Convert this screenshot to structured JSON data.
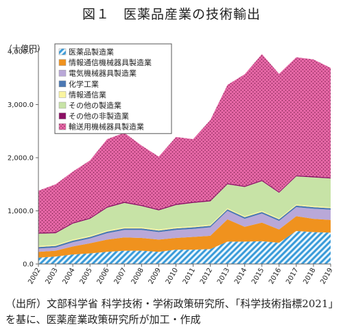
{
  "title": "図１　医薬品産業の技術輸出",
  "source_note": "（出所）文部科学省 科学技術・学術政策研究所、「科学技術指標2021」を基に、医薬産業政策研究所が加工・作成",
  "chart_data": {
    "type": "area",
    "stacked": true,
    "title": "図１　医薬品産業の技術輸出",
    "ylabel": "（十億円）",
    "xlabel": "",
    "ylim": [
      0,
      4000
    ],
    "yticks": [
      "0.0",
      "1,000.0",
      "2,000.0",
      "3,000.0",
      "4,000.0"
    ],
    "yticks_values": [
      0,
      1000,
      2000,
      3000,
      4000
    ],
    "grid": false,
    "legend_position": "top-left",
    "x": [
      "2002",
      "2003",
      "2004",
      "2005",
      "2006",
      "2007",
      "2008",
      "2009",
      "2010",
      "2011",
      "2012",
      "2013",
      "2014",
      "2015",
      "2016",
      "2017",
      "2018",
      "2019"
    ],
    "series": [
      {
        "name": "医薬品製造業",
        "color": "#3a9bd9",
        "pattern": "diagonal",
        "values": [
          120,
          140,
          180,
          200,
          230,
          250,
          250,
          230,
          270,
          270,
          280,
          420,
          420,
          430,
          400,
          620,
          600,
          590
        ]
      },
      {
        "name": "情報通信機械器具製造業",
        "color": "#f0921e",
        "pattern": "solid",
        "values": [
          110,
          110,
          150,
          190,
          230,
          250,
          240,
          230,
          220,
          240,
          250,
          420,
          280,
          350,
          250,
          280,
          250,
          240
        ]
      },
      {
        "name": "電気機械器具製造業",
        "color": "#b9a8d8",
        "pattern": "solid",
        "values": [
          60,
          60,
          80,
          90,
          120,
          140,
          150,
          140,
          150,
          150,
          160,
          160,
          150,
          170,
          160,
          170,
          190,
          190
        ]
      },
      {
        "name": "化学工業",
        "color": "#4b78b3",
        "pattern": "solid",
        "values": [
          30,
          30,
          30,
          30,
          30,
          30,
          30,
          30,
          30,
          30,
          30,
          30,
          30,
          30,
          30,
          30,
          30,
          30
        ]
      },
      {
        "name": "情報通信業",
        "color": "#faf5a0",
        "pattern": "solid",
        "values": [
          20,
          20,
          20,
          20,
          20,
          20,
          20,
          20,
          20,
          20,
          20,
          20,
          20,
          20,
          20,
          20,
          20,
          20
        ]
      },
      {
        "name": "その他の製造業",
        "color": "#c7e3a6",
        "pattern": "solid",
        "values": [
          230,
          220,
          300,
          320,
          430,
          460,
          400,
          360,
          420,
          440,
          440,
          450,
          550,
          560,
          480,
          530,
          540,
          540
        ]
      },
      {
        "name": "その他の非製造業",
        "color": "#8b0f63",
        "pattern": "solid",
        "values": [
          20,
          20,
          20,
          20,
          20,
          20,
          20,
          20,
          20,
          20,
          20,
          20,
          20,
          20,
          20,
          20,
          20,
          20
        ]
      },
      {
        "name": "輸送用機械器具製造業",
        "color": "#e667a6",
        "pattern": "dotted",
        "values": [
          790,
          900,
          960,
          1080,
          1270,
          1300,
          1120,
          990,
          1260,
          1180,
          1510,
          1850,
          2100,
          2370,
          2220,
          2220,
          2200,
          2060
        ]
      }
    ]
  }
}
